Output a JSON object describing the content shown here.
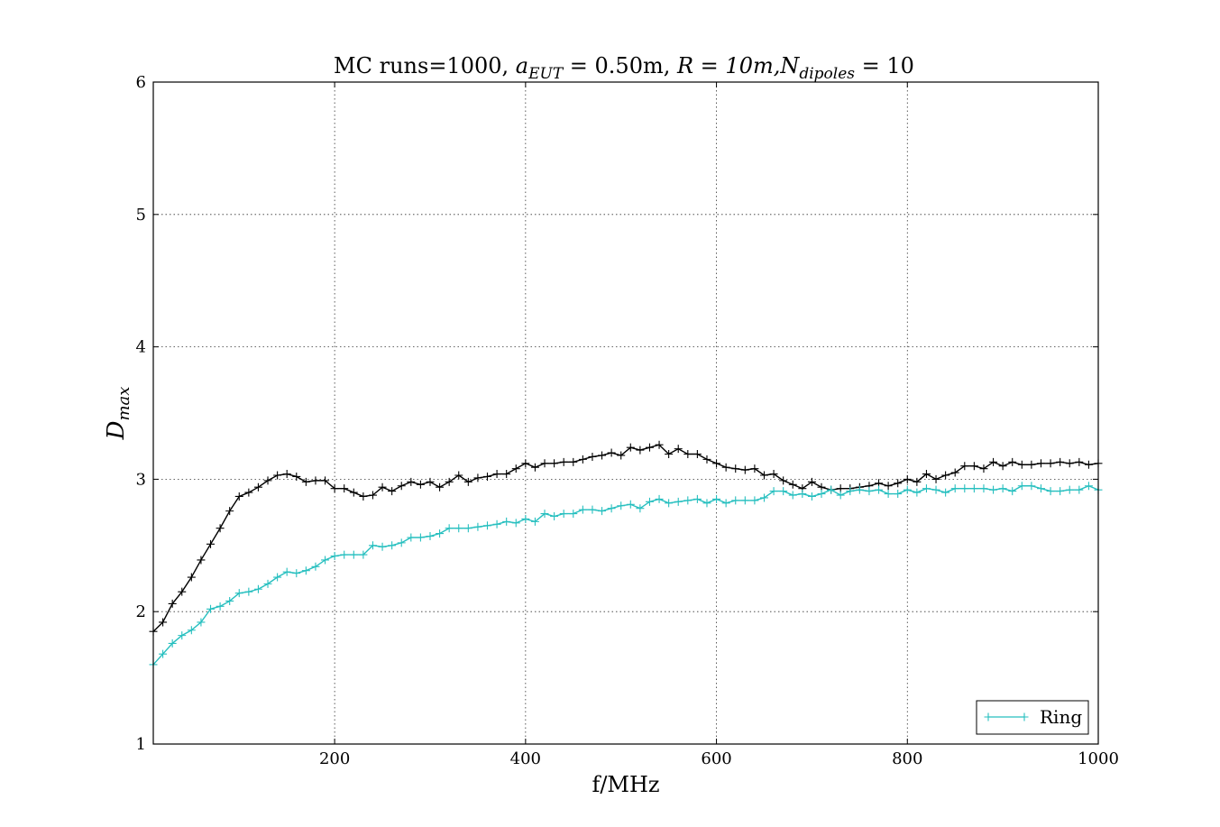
{
  "chart_data": {
    "type": "line",
    "title": "MC runs=1000, a_{EUT} = 0.50m, R = 10m,N_{dipoles} = 10",
    "title_parts": {
      "prefix": "MC runs=1000, ",
      "a_sym": "a",
      "a_sub": "EUT",
      "a_rest": " = 0.50m, ",
      "r_part": "R = 10m,",
      "n_sym": "N",
      "n_sub": "dipoles",
      "n_rest": " = 10"
    },
    "xlabel": "f/MHz",
    "ylabel_sym": "D",
    "ylabel_sub": "max",
    "xlim": [
      10,
      1000
    ],
    "ylim": [
      1,
      6
    ],
    "xticks": [
      200,
      400,
      600,
      800,
      1000
    ],
    "yticks": [
      1,
      2,
      3,
      4,
      5,
      6
    ],
    "grid": true,
    "legend_position": "lower-right",
    "series": [
      {
        "name": "",
        "color": "#000000",
        "marker": "+",
        "x": [
          10,
          20,
          30,
          40,
          50,
          60,
          70,
          80,
          90,
          100,
          110,
          120,
          130,
          140,
          150,
          160,
          170,
          180,
          190,
          200,
          210,
          220,
          230,
          240,
          250,
          260,
          270,
          280,
          290,
          300,
          310,
          320,
          330,
          340,
          350,
          360,
          370,
          380,
          390,
          400,
          410,
          420,
          430,
          440,
          450,
          460,
          470,
          480,
          490,
          500,
          510,
          520,
          530,
          540,
          550,
          560,
          570,
          580,
          590,
          600,
          610,
          620,
          630,
          640,
          650,
          660,
          670,
          680,
          690,
          700,
          710,
          720,
          730,
          740,
          750,
          760,
          770,
          780,
          790,
          800,
          810,
          820,
          830,
          840,
          850,
          860,
          870,
          880,
          890,
          900,
          910,
          920,
          930,
          940,
          950,
          960,
          970,
          980,
          990,
          1000
        ],
        "y": [
          1.85,
          1.92,
          2.06,
          2.15,
          2.26,
          2.39,
          2.51,
          2.63,
          2.76,
          2.87,
          2.9,
          2.94,
          2.99,
          3.03,
          3.04,
          3.02,
          2.98,
          2.99,
          2.99,
          2.93,
          2.93,
          2.9,
          2.87,
          2.88,
          2.94,
          2.91,
          2.95,
          2.98,
          2.96,
          2.98,
          2.94,
          2.98,
          3.03,
          2.98,
          3.01,
          3.02,
          3.04,
          3.04,
          3.08,
          3.12,
          3.09,
          3.12,
          3.12,
          3.13,
          3.13,
          3.15,
          3.17,
          3.18,
          3.2,
          3.18,
          3.24,
          3.22,
          3.24,
          3.26,
          3.19,
          3.23,
          3.19,
          3.19,
          3.15,
          3.12,
          3.09,
          3.08,
          3.07,
          3.08,
          3.03,
          3.04,
          2.99,
          2.96,
          2.93,
          2.98,
          2.94,
          2.92,
          2.93,
          2.93,
          2.94,
          2.95,
          2.97,
          2.95,
          2.97,
          3.0,
          2.98,
          3.04,
          3.0,
          3.03,
          3.05,
          3.1,
          3.1,
          3.08,
          3.13,
          3.1,
          3.13,
          3.11,
          3.11,
          3.12,
          3.12,
          3.13,
          3.12,
          3.13,
          3.11,
          3.12
        ]
      },
      {
        "name": "Ring",
        "color": "#26bfbf",
        "marker": "+",
        "x": [
          10,
          20,
          30,
          40,
          50,
          60,
          70,
          80,
          90,
          100,
          110,
          120,
          130,
          140,
          150,
          160,
          170,
          180,
          190,
          200,
          210,
          220,
          230,
          240,
          250,
          260,
          270,
          280,
          290,
          300,
          310,
          320,
          330,
          340,
          350,
          360,
          370,
          380,
          390,
          400,
          410,
          420,
          430,
          440,
          450,
          460,
          470,
          480,
          490,
          500,
          510,
          520,
          530,
          540,
          550,
          560,
          570,
          580,
          590,
          600,
          610,
          620,
          630,
          640,
          650,
          660,
          670,
          680,
          690,
          700,
          710,
          720,
          730,
          740,
          750,
          760,
          770,
          780,
          790,
          800,
          810,
          820,
          830,
          840,
          850,
          860,
          870,
          880,
          890,
          900,
          910,
          920,
          930,
          940,
          950,
          960,
          970,
          980,
          990,
          1000
        ],
        "y": [
          1.6,
          1.68,
          1.76,
          1.82,
          1.86,
          1.92,
          2.02,
          2.04,
          2.08,
          2.14,
          2.15,
          2.17,
          2.21,
          2.26,
          2.3,
          2.29,
          2.31,
          2.34,
          2.39,
          2.42,
          2.43,
          2.43,
          2.43,
          2.5,
          2.49,
          2.5,
          2.52,
          2.56,
          2.56,
          2.57,
          2.59,
          2.63,
          2.63,
          2.63,
          2.64,
          2.65,
          2.66,
          2.68,
          2.67,
          2.7,
          2.68,
          2.74,
          2.72,
          2.74,
          2.74,
          2.77,
          2.77,
          2.76,
          2.78,
          2.8,
          2.81,
          2.78,
          2.83,
          2.85,
          2.82,
          2.83,
          2.84,
          2.85,
          2.82,
          2.85,
          2.82,
          2.84,
          2.84,
          2.84,
          2.86,
          2.91,
          2.91,
          2.88,
          2.89,
          2.87,
          2.89,
          2.92,
          2.88,
          2.91,
          2.92,
          2.91,
          2.92,
          2.89,
          2.89,
          2.92,
          2.9,
          2.93,
          2.92,
          2.9,
          2.93,
          2.93,
          2.93,
          2.93,
          2.92,
          2.93,
          2.91,
          2.95,
          2.95,
          2.93,
          2.91,
          2.91,
          2.92,
          2.92,
          2.95,
          2.92
        ]
      }
    ]
  }
}
